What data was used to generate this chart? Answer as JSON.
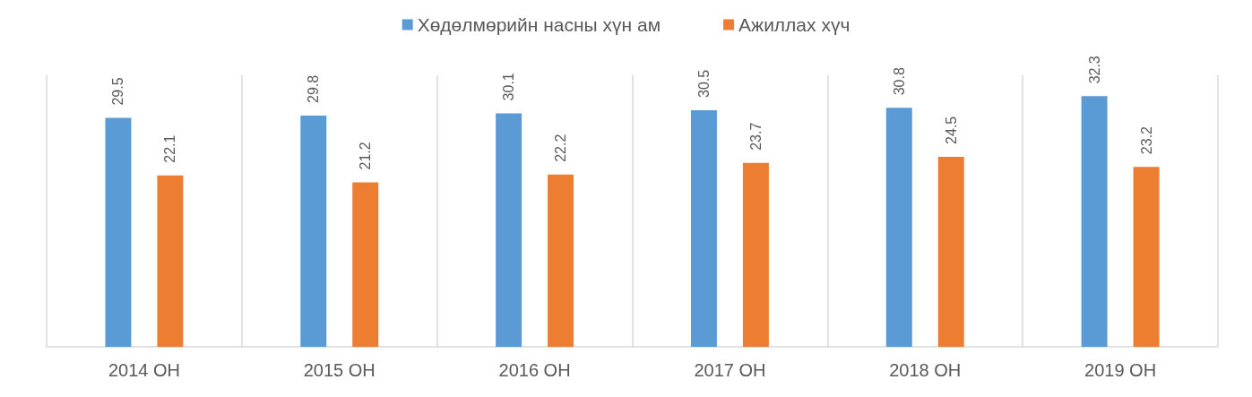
{
  "chart_data": {
    "type": "bar",
    "categories": [
      "2014 ОН",
      "2015 ОН",
      "2016 ОН",
      "2017 ОН",
      "2018 ОН",
      "2019 ОН"
    ],
    "series": [
      {
        "name": "Хөдөлмөрийн насны хүн ам",
        "color": "#5b9bd5",
        "values": [
          29.5,
          29.8,
          30.1,
          30.5,
          30.8,
          32.3
        ]
      },
      {
        "name": "Ажиллах хүч",
        "color": "#ed7d31",
        "values": [
          22.1,
          21.2,
          22.2,
          23.7,
          24.5,
          23.2
        ]
      }
    ],
    "data_labels": true,
    "legend": "top",
    "grid": "x",
    "tick_labels": "x"
  }
}
